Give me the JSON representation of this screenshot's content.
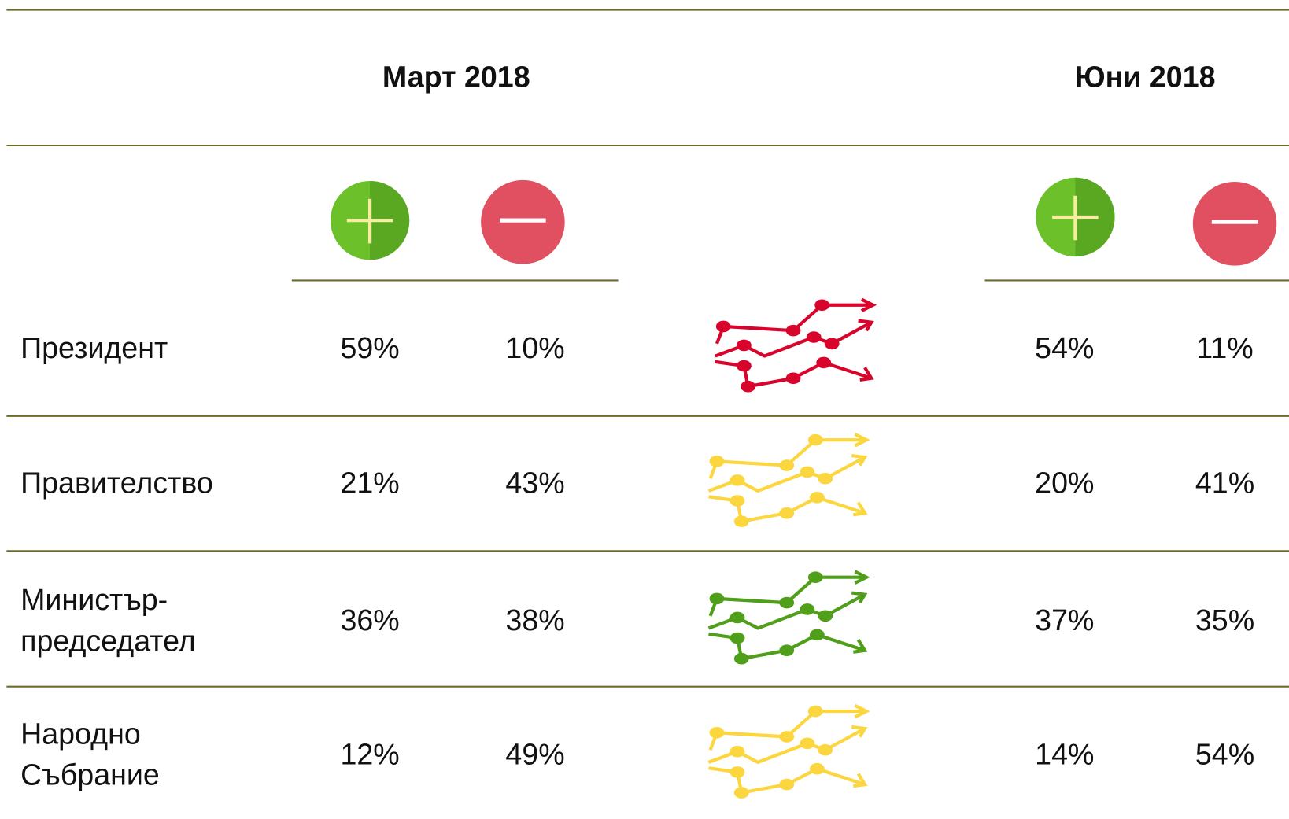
{
  "header": {
    "periods": [
      "Март 2018",
      "Юни 2018"
    ]
  },
  "table": {
    "rows": [
      {
        "label": [
          "Президент"
        ],
        "values": [
          "59%",
          "10%",
          "54%",
          "11%"
        ],
        "trend_color": "#d9042b"
      },
      {
        "label": [
          "Правителство"
        ],
        "values": [
          "21%",
          "43%",
          "20%",
          "41%"
        ],
        "trend_color": "#fcd63f"
      },
      {
        "label": [
          "Министър-",
          "председател"
        ],
        "values": [
          "36%",
          "38%",
          "37%",
          "35%"
        ],
        "trend_color": "#4f9f1a"
      },
      {
        "label": [
          "Народно",
          "Събрание"
        ],
        "values": [
          "12%",
          "49%",
          "14%",
          "54%"
        ],
        "trend_color": "#fcd63f"
      }
    ]
  }
}
